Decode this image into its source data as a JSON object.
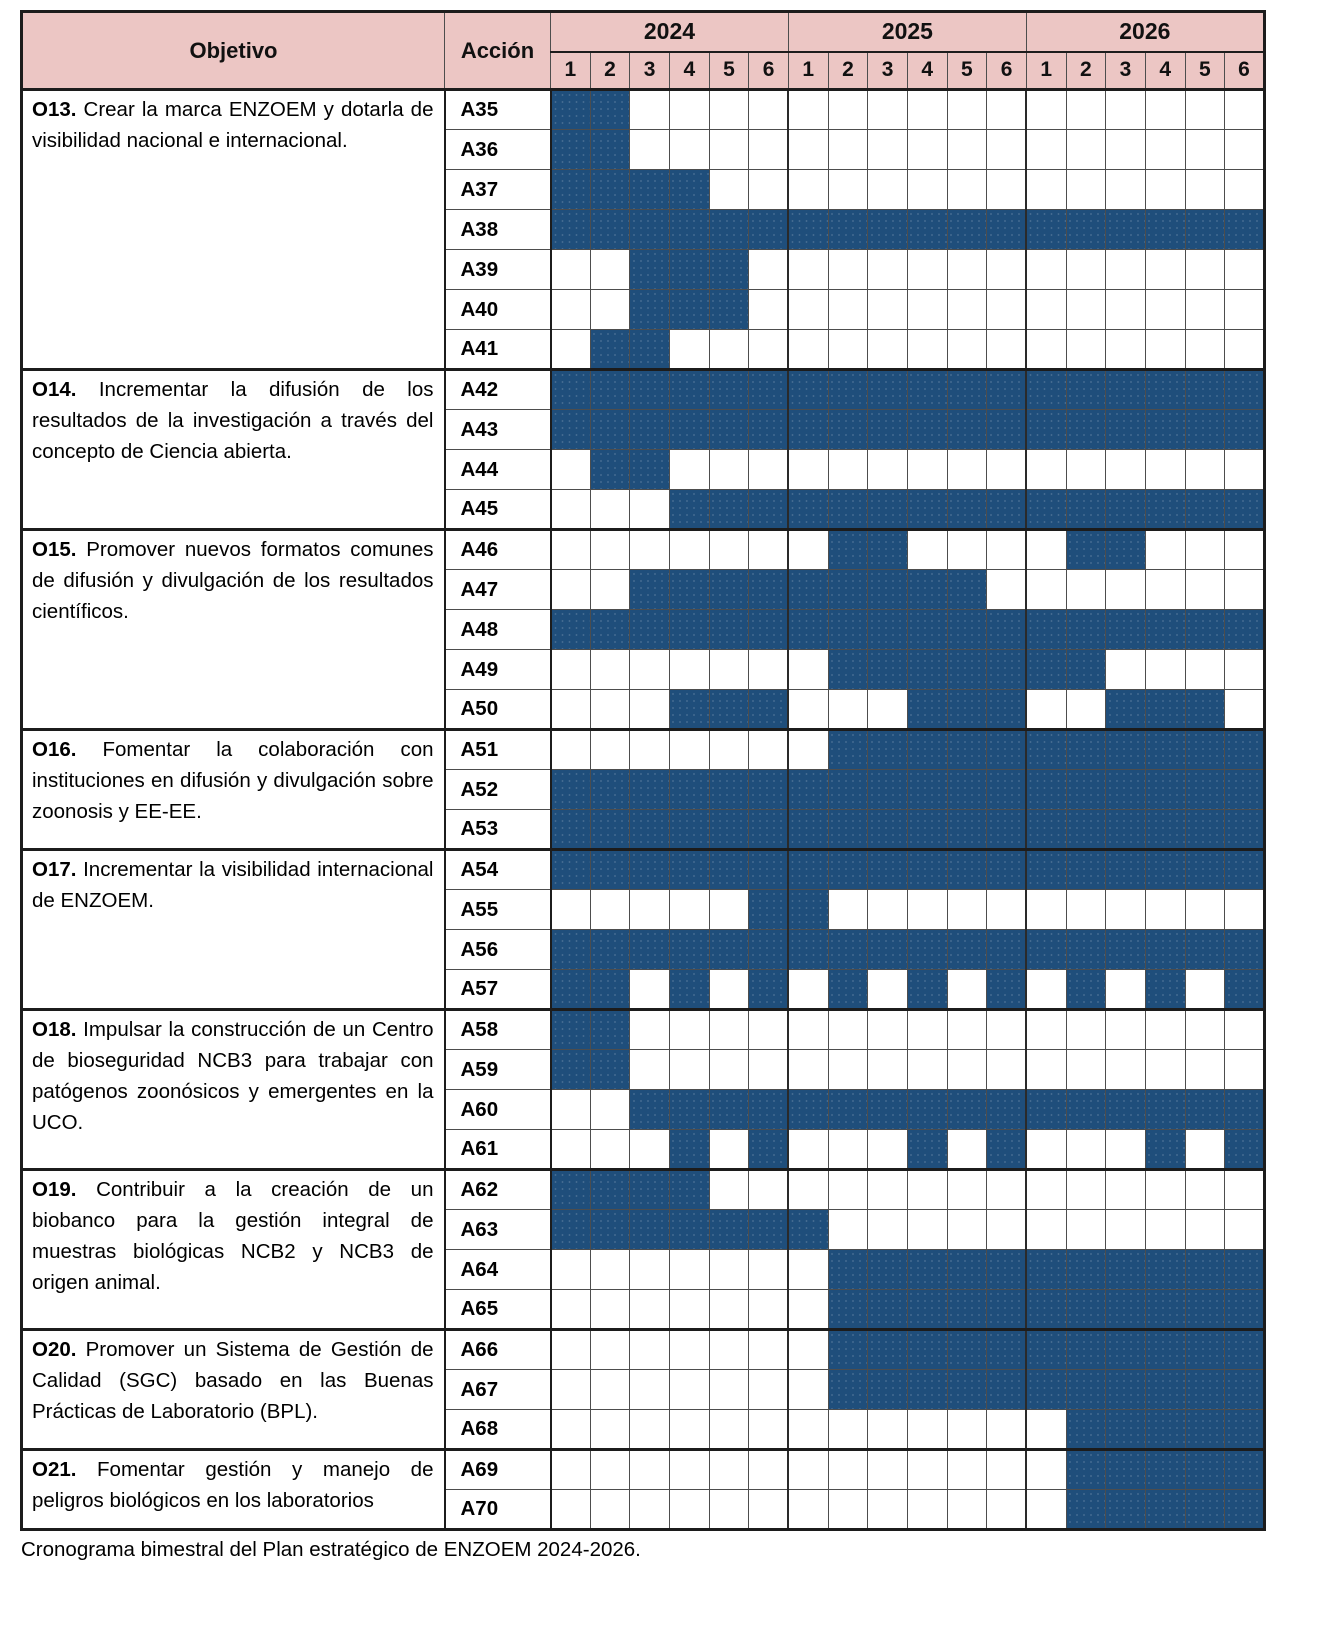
{
  "caption": "Cronograma bimestral del Plan estratégico de ENZOEM 2024-2026.",
  "colors": {
    "fill_blue": "#1f4e7b",
    "header_pink": "#ecc6c4",
    "grid_line": "#4d4d4d",
    "border_black": "#1c1c1c"
  },
  "chart_data": {
    "type": "gantt",
    "title": "Cronograma bimestral del Plan estratégico de ENZOEM 2024-2026.",
    "column_headers": {
      "objective": "Objetivo",
      "action": "Acción",
      "years": [
        "2024",
        "2025",
        "2026"
      ],
      "bimonths_per_year": [
        "1",
        "2",
        "3",
        "4",
        "5",
        "6"
      ]
    },
    "period_note": "18 timeline columns = bimonths 1-6 of 2024, then 1-6 of 2025, then 1-6 of 2026",
    "groups": [
      {
        "objective_code": "O13.",
        "objective_text": "Crear la marca ENZOEM y dotarla de visibilidad nacional e internacional.",
        "actions": [
          {
            "action": "A35",
            "filled": [
              1,
              2
            ]
          },
          {
            "action": "A36",
            "filled": [
              1,
              2
            ]
          },
          {
            "action": "A37",
            "filled": [
              1,
              2,
              3,
              4
            ]
          },
          {
            "action": "A38",
            "filled": [
              1,
              2,
              3,
              4,
              5,
              6,
              7,
              8,
              9,
              10,
              11,
              12,
              13,
              14,
              15,
              16,
              17,
              18
            ]
          },
          {
            "action": "A39",
            "filled": [
              3,
              4,
              5
            ]
          },
          {
            "action": "A40",
            "filled": [
              3,
              4,
              5
            ]
          },
          {
            "action": "A41",
            "filled": [
              2,
              3
            ]
          }
        ]
      },
      {
        "objective_code": "O14.",
        "objective_text": "Incrementar la difusión de los resultados de la investigación a través del concepto de Ciencia abierta.",
        "actions": [
          {
            "action": "A42",
            "filled": [
              1,
              2,
              3,
              4,
              5,
              6,
              7,
              8,
              9,
              10,
              11,
              12,
              13,
              14,
              15,
              16,
              17,
              18
            ]
          },
          {
            "action": "A43",
            "filled": [
              1,
              2,
              3,
              4,
              5,
              6,
              7,
              8,
              9,
              10,
              11,
              12,
              13,
              14,
              15,
              16,
              17,
              18
            ]
          },
          {
            "action": "A44",
            "filled": [
              2,
              3
            ]
          },
          {
            "action": "A45",
            "filled": [
              4,
              5,
              6,
              7,
              8,
              9,
              10,
              11,
              12,
              13,
              14,
              15,
              16,
              17,
              18
            ]
          }
        ]
      },
      {
        "objective_code": "O15.",
        "objective_text": "Promover nuevos formatos comunes de difusión y divulgación de los resultados científicos.",
        "actions": [
          {
            "action": "A46",
            "filled": [
              8,
              9,
              14,
              15
            ]
          },
          {
            "action": "A47",
            "filled": [
              3,
              4,
              5,
              6,
              7,
              8,
              9,
              10,
              11
            ]
          },
          {
            "action": "A48",
            "filled": [
              1,
              2,
              3,
              4,
              5,
              6,
              7,
              8,
              9,
              10,
              11,
              12,
              13,
              14,
              15,
              16,
              17,
              18
            ]
          },
          {
            "action": "A49",
            "filled": [
              8,
              9,
              10,
              11,
              12,
              13,
              14
            ]
          },
          {
            "action": "A50",
            "filled": [
              4,
              5,
              6,
              10,
              11,
              12,
              15,
              16,
              17
            ]
          }
        ]
      },
      {
        "objective_code": "O16.",
        "objective_text": "Fomentar la colaboración con instituciones en difusión y divulgación sobre zoonosis y EE-EE.",
        "actions": [
          {
            "action": "A51",
            "filled": [
              8,
              9,
              10,
              11,
              12,
              13,
              14,
              15,
              16,
              17,
              18
            ]
          },
          {
            "action": "A52",
            "filled": [
              1,
              2,
              3,
              4,
              5,
              6,
              7,
              8,
              9,
              10,
              11,
              12,
              13,
              14,
              15,
              16,
              17,
              18
            ]
          },
          {
            "action": "A53",
            "filled": [
              1,
              2,
              3,
              4,
              5,
              6,
              7,
              8,
              9,
              10,
              11,
              12,
              13,
              14,
              15,
              16,
              17,
              18
            ]
          }
        ]
      },
      {
        "objective_code": "O17.",
        "objective_text": "Incrementar la visibilidad internacional de ENZOEM.",
        "actions": [
          {
            "action": "A54",
            "filled": [
              1,
              2,
              3,
              4,
              5,
              6,
              7,
              8,
              9,
              10,
              11,
              12,
              13,
              14,
              15,
              16,
              17,
              18
            ]
          },
          {
            "action": "A55",
            "filled": [
              6,
              7
            ]
          },
          {
            "action": "A56",
            "filled": [
              1,
              2,
              3,
              4,
              5,
              6,
              7,
              8,
              9,
              10,
              11,
              12,
              13,
              14,
              15,
              16,
              17,
              18
            ]
          },
          {
            "action": "A57",
            "filled": [
              1,
              2,
              4,
              6,
              8,
              10,
              12,
              14,
              16,
              18
            ]
          }
        ]
      },
      {
        "objective_code": "O18.",
        "objective_text": "Impulsar la construcción de un Centro de bioseguridad NCB3 para trabajar con patógenos zoonósicos y emergentes en la UCO.",
        "actions": [
          {
            "action": "A58",
            "filled": [
              1,
              2
            ]
          },
          {
            "action": "A59",
            "filled": [
              1,
              2
            ]
          },
          {
            "action": "A60",
            "filled": [
              3,
              4,
              5,
              6,
              7,
              8,
              9,
              10,
              11,
              12,
              13,
              14,
              15,
              16,
              17,
              18
            ]
          },
          {
            "action": "A61",
            "filled": [
              4,
              6,
              10,
              12,
              16,
              18
            ]
          }
        ]
      },
      {
        "objective_code": "O19.",
        "objective_text": "Contribuir a la creación de un biobanco para la gestión integral de muestras biológicas NCB2 y NCB3 de origen animal.",
        "actions": [
          {
            "action": "A62",
            "filled": [
              1,
              2,
              3,
              4
            ]
          },
          {
            "action": "A63",
            "filled": [
              1,
              2,
              3,
              4,
              5,
              6,
              7
            ]
          },
          {
            "action": "A64",
            "filled": [
              8,
              9,
              10,
              11,
              12,
              13,
              14,
              15,
              16,
              17,
              18
            ]
          },
          {
            "action": "A65",
            "filled": [
              8,
              9,
              10,
              11,
              12,
              13,
              14,
              15,
              16,
              17,
              18
            ]
          }
        ]
      },
      {
        "objective_code": "O20.",
        "objective_text": "Promover un Sistema de Gestión de Calidad (SGC) basado en las Buenas Prácticas de Laboratorio (BPL).",
        "actions": [
          {
            "action": "A66",
            "filled": [
              8,
              9,
              10,
              11,
              12,
              13,
              14,
              15,
              16,
              17,
              18
            ]
          },
          {
            "action": "A67",
            "filled": [
              8,
              9,
              10,
              11,
              12,
              13,
              14,
              15,
              16,
              17,
              18
            ]
          },
          {
            "action": "A68",
            "filled": [
              14,
              15,
              16,
              17,
              18
            ]
          }
        ]
      },
      {
        "objective_code": "O21.",
        "objective_text": "Fomentar gestión y manejo de peligros biológicos en los laboratorios",
        "actions": [
          {
            "action": "A69",
            "filled": [
              14,
              15,
              16,
              17,
              18
            ]
          },
          {
            "action": "A70",
            "filled": [
              14,
              15,
              16,
              17,
              18
            ]
          }
        ]
      }
    ]
  }
}
